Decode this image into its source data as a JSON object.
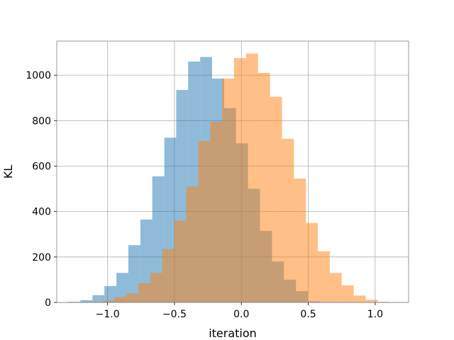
{
  "chart_data": {
    "type": "histogram",
    "title": "",
    "xlabel": "iteration",
    "ylabel": "KL",
    "xlim": [
      -1.38,
      1.25
    ],
    "ylim": [
      0,
      1150
    ],
    "grid": true,
    "legend": "none",
    "xticks": [
      {
        "value": -1.0,
        "label": "−1.0"
      },
      {
        "value": -0.5,
        "label": "−0.5"
      },
      {
        "value": 0.0,
        "label": "0.0"
      },
      {
        "value": 0.5,
        "label": "0.5"
      },
      {
        "value": 1.0,
        "label": "1.0"
      }
    ],
    "yticks": [
      {
        "value": 0,
        "label": "0"
      },
      {
        "value": 200,
        "label": "200"
      },
      {
        "value": 400,
        "label": "400"
      },
      {
        "value": 600,
        "label": "600"
      },
      {
        "value": 800,
        "label": "800"
      },
      {
        "value": 1000,
        "label": "1000"
      }
    ],
    "series": [
      {
        "color": "#1f77b4",
        "opacity": 0.5,
        "bins": [
          -1.292,
          -1.203,
          -1.113,
          -1.024,
          -0.934,
          -0.845,
          -0.755,
          -0.666,
          -0.576,
          -0.487,
          -0.398,
          -0.308,
          -0.219,
          -0.129,
          -0.04,
          0.05,
          0.139,
          0.229,
          0.318,
          0.408,
          0.497,
          0.586
        ],
        "counts": [
          3,
          10,
          32,
          72,
          130,
          252,
          365,
          555,
          725,
          935,
          1060,
          1080,
          985,
          855,
          700,
          500,
          315,
          180,
          100,
          50,
          5
        ]
      },
      {
        "color": "#ff7f0e",
        "opacity": 0.5,
        "bins": [
          -1.128,
          -1.038,
          -0.949,
          -0.86,
          -0.77,
          -0.681,
          -0.591,
          -0.502,
          -0.412,
          -0.323,
          -0.233,
          -0.144,
          -0.055,
          0.035,
          0.124,
          0.214,
          0.303,
          0.393,
          0.482,
          0.572,
          0.661,
          0.75,
          0.84,
          0.929,
          1.019,
          1.108
        ],
        "counts": [
          2,
          8,
          24,
          40,
          85,
          130,
          235,
          360,
          510,
          710,
          795,
          985,
          1075,
          1095,
          1010,
          905,
          720,
          545,
          350,
          225,
          130,
          75,
          30,
          12,
          3
        ]
      }
    ]
  }
}
